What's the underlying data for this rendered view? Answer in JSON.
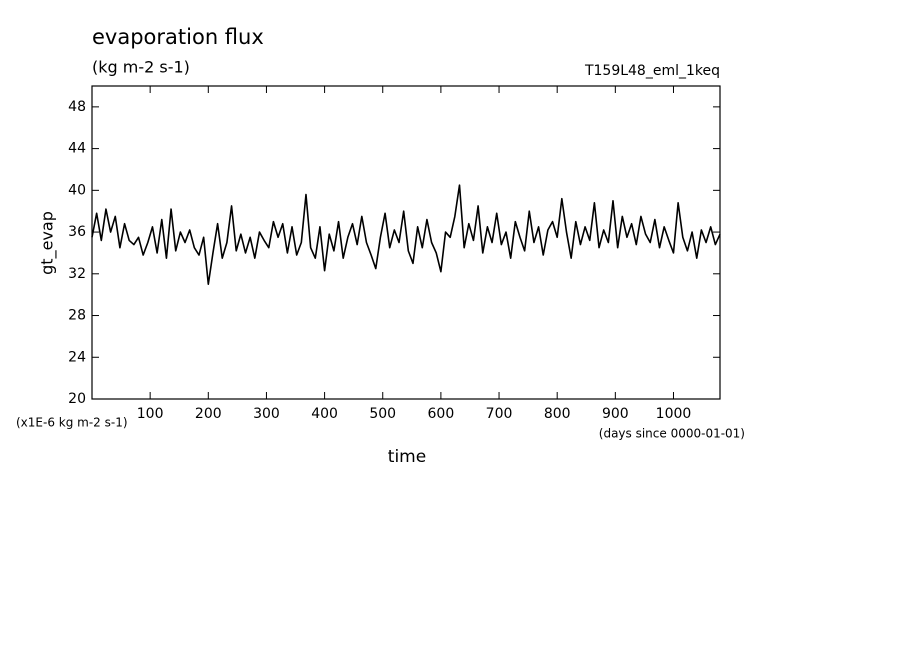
{
  "chart_data": {
    "type": "line",
    "title": "evaporation flux",
    "subtitle": "(kg m-2 s-1)",
    "run_label": "T159L48_eml_1keq",
    "ylabel": "gt_evap",
    "xlabel": "time",
    "y_unit_label": "(x1E-6 kg m-2 s-1)",
    "x_unit_label": "(days since 0000-01-01)",
    "color": "#000000",
    "xlim": [
      0,
      1080
    ],
    "ylim": [
      20,
      50
    ],
    "xticks": [
      100,
      200,
      300,
      400,
      500,
      600,
      700,
      800,
      900,
      1000
    ],
    "yticks": [
      20,
      24,
      28,
      32,
      36,
      40,
      44,
      48
    ],
    "x": [
      0,
      8,
      16,
      24,
      32,
      40,
      48,
      56,
      64,
      72,
      80,
      88,
      96,
      104,
      112,
      120,
      128,
      136,
      144,
      152,
      160,
      168,
      176,
      184,
      192,
      200,
      208,
      216,
      224,
      232,
      240,
      248,
      256,
      264,
      272,
      280,
      288,
      296,
      304,
      312,
      320,
      328,
      336,
      344,
      352,
      360,
      368,
      376,
      384,
      392,
      400,
      408,
      416,
      424,
      432,
      440,
      448,
      456,
      464,
      472,
      480,
      488,
      496,
      504,
      512,
      520,
      528,
      536,
      544,
      552,
      560,
      568,
      576,
      584,
      592,
      600,
      608,
      616,
      624,
      632,
      640,
      648,
      656,
      664,
      672,
      680,
      688,
      696,
      704,
      712,
      720,
      728,
      736,
      744,
      752,
      760,
      768,
      776,
      784,
      792,
      800,
      808,
      816,
      824,
      832,
      840,
      848,
      856,
      864,
      872,
      880,
      888,
      896,
      904,
      912,
      920,
      928,
      936,
      944,
      952,
      960,
      968,
      976,
      984,
      992,
      1000,
      1008,
      1016,
      1024,
      1032,
      1040,
      1048,
      1056,
      1064,
      1072,
      1080
    ],
    "values": [
      35.5,
      37.8,
      35.2,
      38.2,
      36.0,
      37.5,
      34.5,
      36.8,
      35.2,
      34.8,
      35.5,
      33.8,
      35.0,
      36.5,
      34.0,
      37.2,
      33.5,
      38.2,
      34.2,
      36.0,
      35.0,
      36.2,
      34.5,
      33.8,
      35.5,
      31.0,
      34.0,
      36.8,
      33.5,
      35.0,
      38.5,
      34.2,
      35.8,
      34.0,
      35.5,
      33.5,
      36.0,
      35.2,
      34.5,
      37.0,
      35.5,
      36.8,
      34.0,
      36.5,
      33.8,
      35.0,
      39.6,
      34.5,
      33.5,
      36.5,
      32.3,
      35.8,
      34.2,
      37.0,
      33.5,
      35.5,
      36.8,
      34.8,
      37.5,
      35.0,
      33.8,
      32.5,
      35.5,
      37.8,
      34.5,
      36.2,
      35.0,
      38.0,
      34.2,
      33.0,
      36.5,
      34.5,
      37.2,
      35.0,
      34.0,
      32.2,
      36.0,
      35.5,
      37.5,
      40.5,
      34.5,
      36.8,
      35.2,
      38.5,
      34.0,
      36.5,
      35.0,
      37.8,
      34.8,
      36.0,
      33.5,
      37.0,
      35.5,
      34.2,
      38.0,
      35.0,
      36.5,
      33.8,
      36.2,
      37.0,
      35.5,
      39.2,
      36.0,
      33.5,
      37.0,
      34.8,
      36.5,
      35.2,
      38.8,
      34.5,
      36.2,
      35.0,
      39.0,
      34.5,
      37.5,
      35.5,
      36.8,
      34.8,
      37.5,
      35.8,
      35.0,
      37.2,
      34.5,
      36.5,
      35.2,
      34.0,
      38.8,
      35.5,
      34.2,
      36.0,
      33.5,
      36.2,
      35.0,
      36.5,
      34.8,
      35.8
    ]
  }
}
